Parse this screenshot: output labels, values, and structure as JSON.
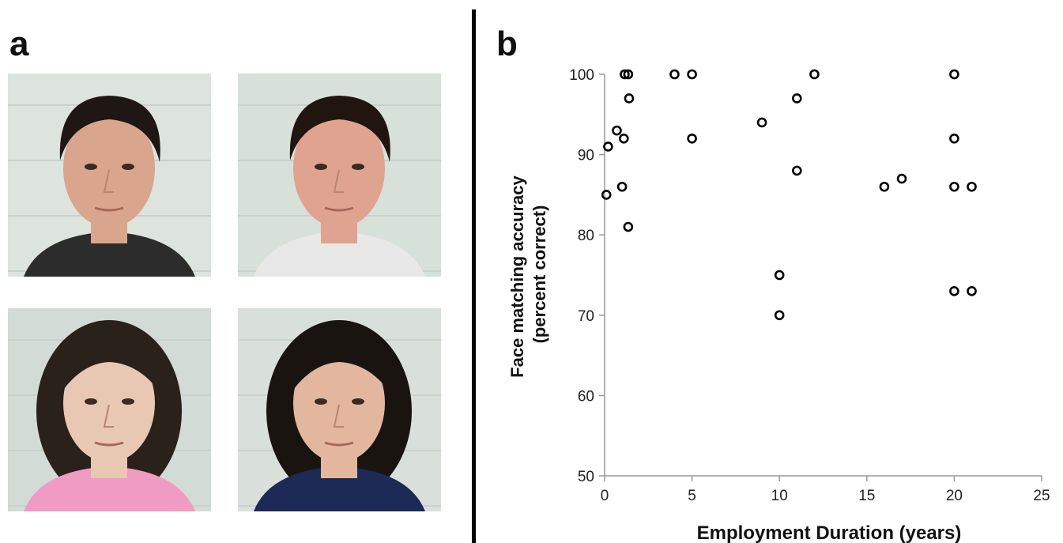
{
  "panels": {
    "left_label": "a",
    "right_label": "b"
  },
  "photos": [
    {
      "name": "young-man-short-hair",
      "hair": "#1e1713",
      "skin": "#d9a58d",
      "shirt": "#2c2c2c",
      "background": "#dde3dd"
    },
    {
      "name": "young-man-brown-hair",
      "hair": "#21150f",
      "skin": "#e0a390",
      "shirt": "#e8e8e8",
      "background": "#d8e0da"
    },
    {
      "name": "woman-messy-hair",
      "hair": "#2a211b",
      "skin": "#e8c8b2",
      "shirt": "#f09bc4",
      "background": "#d3dbd6"
    },
    {
      "name": "woman-bob-hair",
      "hair": "#1a1411",
      "skin": "#e2b79e",
      "shirt": "#1d2a55",
      "background": "#d9e0dc"
    }
  ],
  "chart_data": {
    "type": "scatter",
    "xlabel": "Employment Duration (years)",
    "ylabel_lines": [
      "Face matching accuracy",
      "(percent correct)"
    ],
    "xlim": [
      0,
      25
    ],
    "ylim": [
      50,
      100
    ],
    "xticks": [
      0,
      5,
      10,
      15,
      20,
      25
    ],
    "yticks": [
      50,
      60,
      70,
      80,
      90,
      100
    ],
    "grid": false,
    "marker": "open-circle",
    "points": [
      {
        "x": 0.1,
        "y": 85
      },
      {
        "x": 0.2,
        "y": 91
      },
      {
        "x": 0.7,
        "y": 93
      },
      {
        "x": 1.0,
        "y": 86
      },
      {
        "x": 1.1,
        "y": 92
      },
      {
        "x": 1.15,
        "y": 100
      },
      {
        "x": 1.35,
        "y": 100
      },
      {
        "x": 1.4,
        "y": 97
      },
      {
        "x": 1.35,
        "y": 81
      },
      {
        "x": 4.0,
        "y": 100
      },
      {
        "x": 5.0,
        "y": 100
      },
      {
        "x": 5.0,
        "y": 92
      },
      {
        "x": 9.0,
        "y": 94
      },
      {
        "x": 10.0,
        "y": 75
      },
      {
        "x": 10.0,
        "y": 70
      },
      {
        "x": 11.0,
        "y": 97
      },
      {
        "x": 11.0,
        "y": 88
      },
      {
        "x": 12.0,
        "y": 100
      },
      {
        "x": 16.0,
        "y": 86
      },
      {
        "x": 17.0,
        "y": 87
      },
      {
        "x": 20.0,
        "y": 100
      },
      {
        "x": 20.0,
        "y": 92
      },
      {
        "x": 20.0,
        "y": 86
      },
      {
        "x": 20.0,
        "y": 73
      },
      {
        "x": 21.0,
        "y": 86
      },
      {
        "x": 21.0,
        "y": 73
      }
    ]
  }
}
